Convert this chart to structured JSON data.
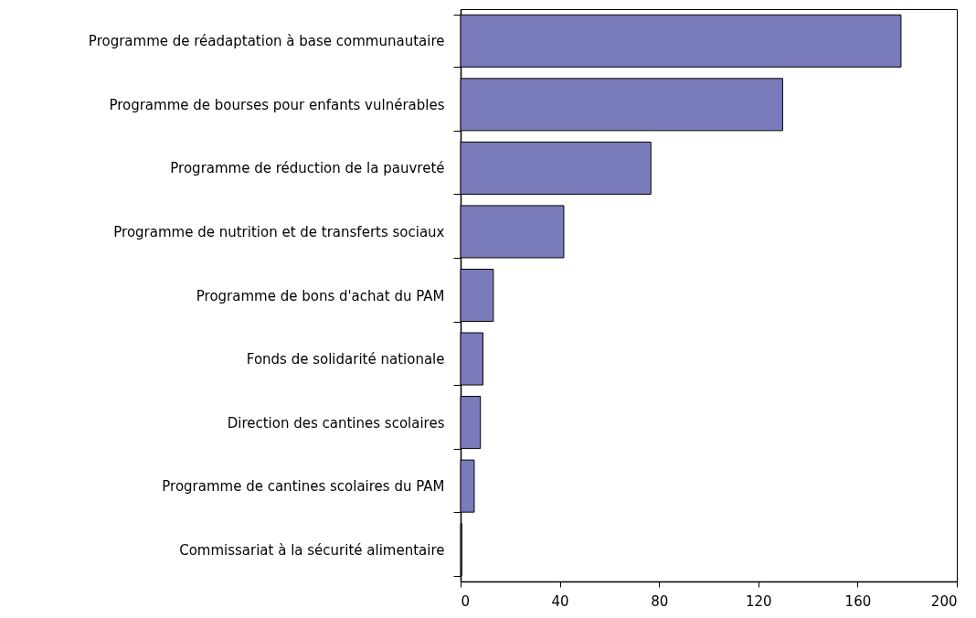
{
  "chart_data": {
    "type": "bar",
    "orientation": "horizontal",
    "categories": [
      "Programme de réadaptation à base communautaire",
      "Programme de bourses pour enfants vulnérables",
      "Programme de réduction de la pauvreté",
      "Programme de nutrition et de transferts sociaux",
      "Programme de bons d'achat du PAM",
      "Fonds de solidarité nationale",
      "Direction des cantines scolaires",
      "Programme de cantines scolaires du PAM",
      "Commissariat à la sécurité alimentaire"
    ],
    "values": [
      177.5,
      129.8,
      76.7,
      41.6,
      13.2,
      9.0,
      8.0,
      5.5,
      0.5
    ],
    "color": "#7a7bba",
    "xlim": [
      0,
      200
    ],
    "xticks": [
      0,
      40,
      80,
      120,
      160,
      200
    ],
    "grid": false
  }
}
